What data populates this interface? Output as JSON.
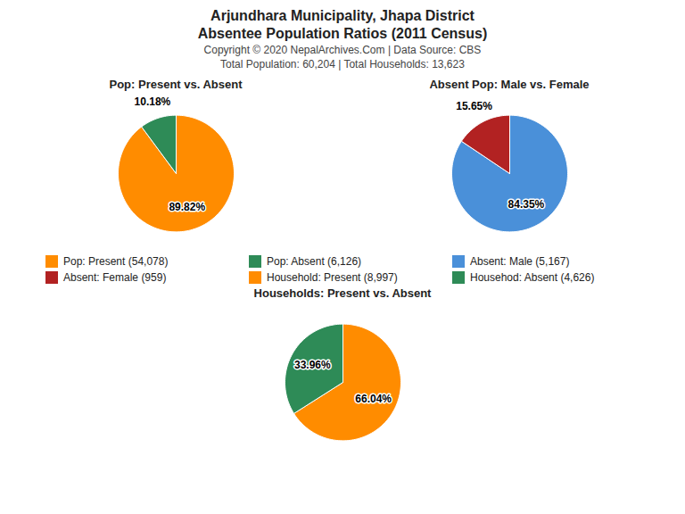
{
  "title": [
    "Arjundhara Municipality, Jhapa District",
    "Absentee Population Ratios (2011 Census)"
  ],
  "subtitle": [
    "Copyright © 2020 NepalArchives.Com | Data Source: CBS",
    "Total Population: 60,204 | Total Households: 13,623"
  ],
  "chart_data": [
    {
      "type": "pie",
      "title": "Pop: Present vs. Absent",
      "categories": [
        "Pop: Present (54,078)",
        "Pop: Absent (6,126)"
      ],
      "values": [
        89.82,
        10.18
      ],
      "colors": [
        "#FF8C00",
        "#2E8B57"
      ],
      "data_labels": true,
      "value_labels": [
        "89.82%",
        "10.18%"
      ]
    },
    {
      "type": "pie",
      "title": "Absent Pop: Male vs. Female",
      "categories": [
        "Absent: Male (5,167)",
        "Absent: Female (959)"
      ],
      "values": [
        84.35,
        15.65
      ],
      "colors": [
        "#4A90D9",
        "#B22222"
      ],
      "data_labels": true,
      "value_labels": [
        "84.35%",
        "15.65%"
      ]
    },
    {
      "type": "pie",
      "title": "Households: Present vs. Absent",
      "categories": [
        "Household: Present (8,997)",
        "Househod: Absent (4,626)"
      ],
      "values": [
        66.04,
        33.96
      ],
      "colors": [
        "#FF8C00",
        "#2E8B57"
      ],
      "data_labels": true,
      "value_labels": [
        "66.04%",
        "33.96%"
      ]
    }
  ]
}
